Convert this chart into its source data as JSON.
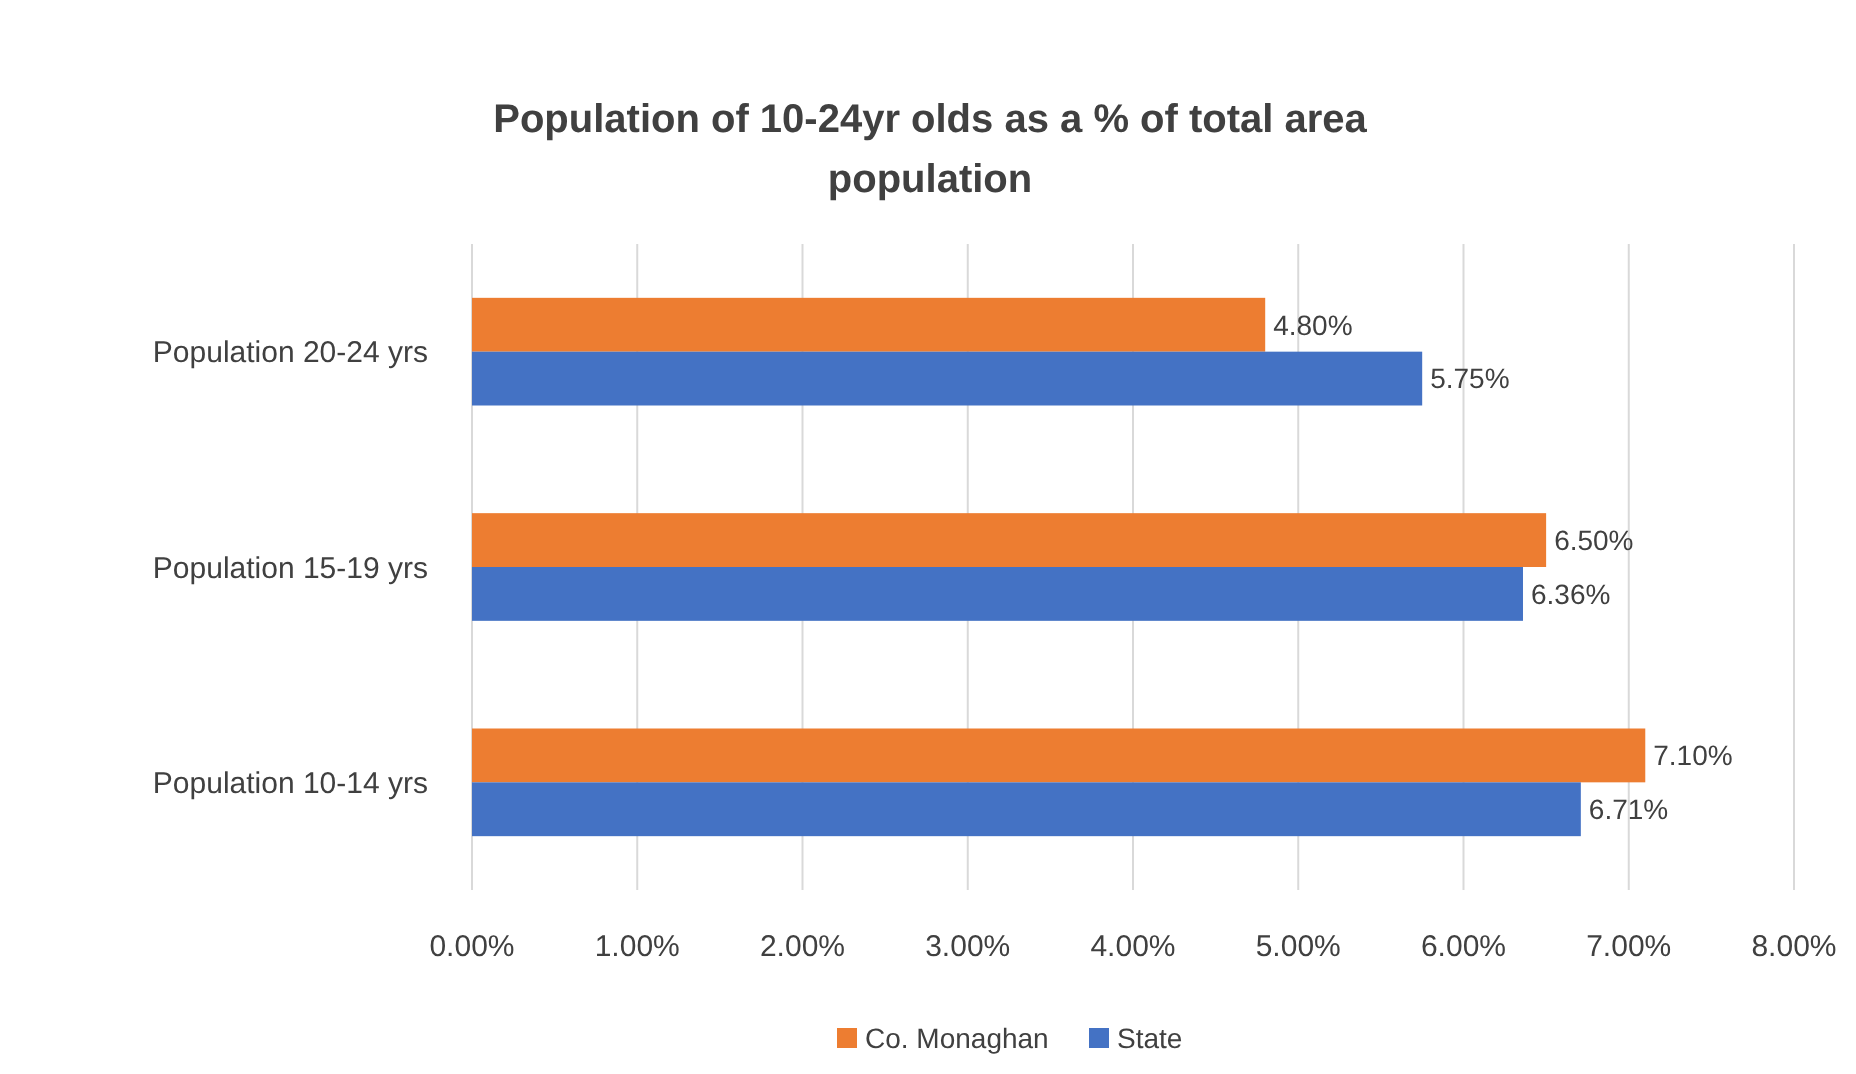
{
  "chart_data": {
    "type": "bar",
    "orientation": "horizontal",
    "title": "Population of 10-24yr olds as a % of total area population",
    "categories": [
      "Population 20-24 yrs",
      "Population 15-19 yrs",
      "Population 10-14 yrs"
    ],
    "series": [
      {
        "name": "Co. Monaghan",
        "color": "#ed7d31",
        "values": [
          4.8,
          6.5,
          7.1
        ],
        "value_labels": [
          "4.80%",
          "6.50%",
          "7.10%"
        ]
      },
      {
        "name": "State",
        "color": "#4472c4",
        "values": [
          5.75,
          6.36,
          6.71
        ],
        "value_labels": [
          "5.75%",
          "6.36%",
          "6.71%"
        ]
      }
    ],
    "xlim": [
      0,
      8
    ],
    "xticks": [
      {
        "value": 0,
        "label": "0.00%"
      },
      {
        "value": 1,
        "label": "1.00%"
      },
      {
        "value": 2,
        "label": "2.00%"
      },
      {
        "value": 3,
        "label": "3.00%"
      },
      {
        "value": 4,
        "label": "4.00%"
      },
      {
        "value": 5,
        "label": "5.00%"
      },
      {
        "value": 6,
        "label": "6.00%"
      },
      {
        "value": 7,
        "label": "7.00%"
      },
      {
        "value": 8,
        "label": "8.00%"
      }
    ],
    "grid": "x",
    "legend": "bottom"
  }
}
